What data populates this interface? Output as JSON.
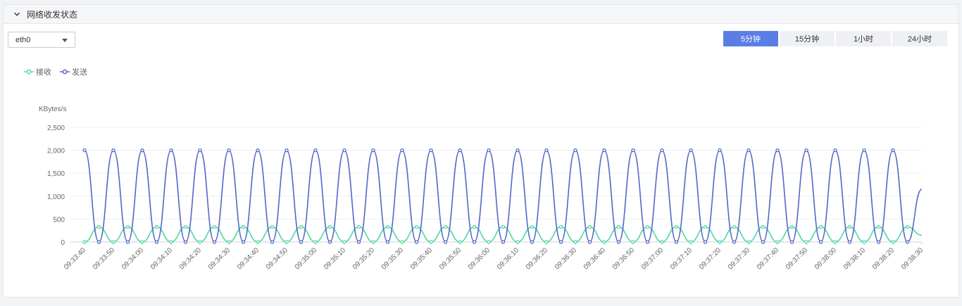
{
  "panel": {
    "title": "网络收发状态"
  },
  "nic_select": {
    "value": "eth0"
  },
  "range_buttons": [
    {
      "label": "5分钟",
      "active": true
    },
    {
      "label": "15分钟",
      "active": false
    },
    {
      "label": "1小时",
      "active": false
    },
    {
      "label": "24小时",
      "active": false
    }
  ],
  "colors": {
    "receive": "#4fd8a6",
    "send": "#5468c7",
    "accent": "#5b7ee6"
  },
  "chart_data": {
    "type": "line",
    "ylabel": "KBytes/s",
    "ylim": [
      0,
      2500
    ],
    "yticks": [
      "0",
      "500",
      "1,000",
      "1,500",
      "2,000",
      "2,500"
    ],
    "ytick_values": [
      0,
      500,
      1000,
      1500,
      2000,
      2500
    ],
    "x": [
      "09:33:40",
      "09:33:45",
      "09:33:50",
      "09:33:55",
      "09:34:00",
      "09:34:05",
      "09:34:10",
      "09:34:15",
      "09:34:20",
      "09:34:25",
      "09:34:30",
      "09:34:35",
      "09:34:40",
      "09:34:45",
      "09:34:50",
      "09:34:55",
      "09:35:00",
      "09:35:05",
      "09:35:10",
      "09:35:15",
      "09:35:20",
      "09:35:25",
      "09:35:30",
      "09:35:35",
      "09:35:40",
      "09:35:45",
      "09:35:50",
      "09:35:55",
      "09:36:00",
      "09:36:05",
      "09:36:10",
      "09:36:15",
      "09:36:20",
      "09:36:25",
      "09:36:30",
      "09:36:35",
      "09:36:40",
      "09:36:45",
      "09:36:50",
      "09:36:55",
      "09:37:00",
      "09:37:05",
      "09:37:10",
      "09:37:15",
      "09:37:20",
      "09:37:25",
      "09:37:30",
      "09:37:35",
      "09:37:40",
      "09:37:45",
      "09:37:50",
      "09:37:55",
      "09:38:00",
      "09:38:05",
      "09:38:10",
      "09:38:15",
      "09:38:20",
      "09:38:25",
      "09:38:30"
    ],
    "xtick_labels": [
      "09:33:40",
      "09:33:50",
      "09:34:00",
      "09:34:10",
      "09:34:20",
      "09:34:30",
      "09:34:40",
      "09:34:50",
      "09:35:00",
      "09:35:10",
      "09:35:20",
      "09:35:30",
      "09:35:40",
      "09:35:50",
      "09:36:00",
      "09:36:10",
      "09:36:20",
      "09:36:30",
      "09:36:40",
      "09:36:50",
      "09:37:00",
      "09:37:10",
      "09:37:20",
      "09:37:30",
      "09:37:40",
      "09:37:50",
      "09:38:00",
      "09:38:10",
      "09:38:20",
      "09:38:30"
    ],
    "series": [
      {
        "name": "接收",
        "values": [
          0,
          330,
          0,
          330,
          0,
          330,
          0,
          330,
          0,
          330,
          0,
          330,
          0,
          330,
          0,
          330,
          0,
          330,
          0,
          330,
          0,
          330,
          0,
          330,
          0,
          330,
          0,
          330,
          0,
          330,
          0,
          330,
          0,
          330,
          0,
          330,
          0,
          330,
          0,
          330,
          0,
          330,
          0,
          330,
          0,
          330,
          0,
          330,
          0,
          330,
          0,
          330,
          0,
          330,
          0,
          330,
          0,
          330,
          150
        ]
      },
      {
        "name": "发送",
        "values": [
          2000,
          0,
          2000,
          0,
          2000,
          0,
          2000,
          0,
          2000,
          0,
          2000,
          0,
          2000,
          0,
          2000,
          0,
          2000,
          0,
          2000,
          0,
          2000,
          0,
          2000,
          0,
          2000,
          0,
          2000,
          0,
          2000,
          0,
          2000,
          0,
          2000,
          0,
          2000,
          0,
          2000,
          0,
          2000,
          0,
          2000,
          0,
          2000,
          0,
          2000,
          0,
          2000,
          0,
          2000,
          0,
          2000,
          0,
          2000,
          0,
          2000,
          0,
          2000,
          0,
          1150
        ]
      }
    ],
    "grid": true,
    "legend_position": "top-left"
  }
}
